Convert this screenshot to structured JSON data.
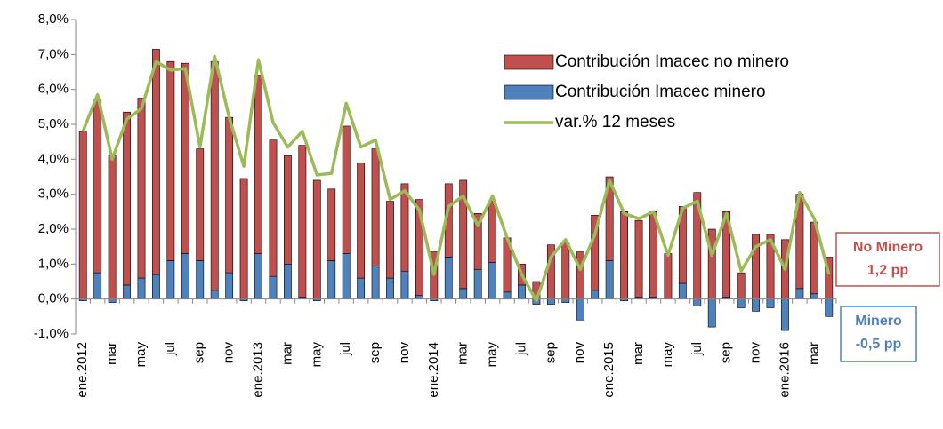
{
  "chart_data": {
    "type": "bar",
    "categories": [
      "ene.2012",
      null,
      "mar",
      null,
      "may",
      null,
      "jul",
      null,
      "sep",
      null,
      "nov",
      null,
      "ene.2013",
      null,
      "mar",
      null,
      "may",
      null,
      "jul",
      null,
      "sep",
      null,
      "nov",
      null,
      "ene.2014",
      null,
      "mar",
      null,
      "may",
      null,
      "jul",
      null,
      "sep",
      null,
      "nov",
      null,
      "ene.2015",
      null,
      "mar",
      null,
      "may",
      null,
      "jul",
      null,
      "sep",
      null,
      "nov",
      null,
      "ene.2016",
      null,
      "mar",
      null
    ],
    "series": [
      {
        "name": "Contribución Imacec no minero",
        "type": "bar",
        "color": "#c0504d",
        "values": [
          4.8,
          4.95,
          4.1,
          4.95,
          5.15,
          6.45,
          5.7,
          5.45,
          3.2,
          6.55,
          4.45,
          3.45,
          5.1,
          3.9,
          3.1,
          4.35,
          3.4,
          2.05,
          3.65,
          3.3,
          3.35,
          2.2,
          2.5,
          2.75,
          1.35,
          2.1,
          3.1,
          1.6,
          1.75,
          1.55,
          0.6,
          0.5,
          1.55,
          1.6,
          1.35,
          2.15,
          2.4,
          2.5,
          2.2,
          2.45,
          1.3,
          2.2,
          3.05,
          2.0,
          2.45,
          0.75,
          1.85,
          1.85,
          1.7,
          2.7,
          2.05,
          1.2
        ]
      },
      {
        "name": "Contribución Imacec minero",
        "type": "bar",
        "color": "#4f81bd",
        "values": [
          -0.05,
          0.75,
          -0.1,
          0.4,
          0.6,
          0.7,
          1.1,
          1.3,
          1.1,
          0.25,
          0.75,
          -0.05,
          1.3,
          0.65,
          1.0,
          0.05,
          -0.05,
          1.1,
          1.3,
          0.6,
          0.95,
          0.6,
          0.8,
          0.1,
          -0.05,
          1.2,
          0.3,
          0.85,
          1.05,
          0.2,
          0.4,
          -0.15,
          -0.15,
          -0.1,
          -0.6,
          0.25,
          1.1,
          -0.05,
          0.05,
          0.05,
          0.0,
          0.45,
          -0.2,
          -0.8,
          0.05,
          -0.25,
          -0.35,
          -0.25,
          -0.9,
          0.3,
          0.15,
          -0.5
        ]
      },
      {
        "name": "var.% 12 meses",
        "type": "line",
        "color": "#9bbb59",
        "values": [
          4.8,
          5.85,
          4.0,
          5.15,
          5.45,
          6.8,
          6.55,
          6.6,
          4.35,
          6.95,
          5.2,
          3.8,
          6.85,
          5.05,
          4.35,
          4.8,
          3.55,
          3.6,
          5.6,
          4.35,
          4.55,
          2.85,
          3.1,
          2.55,
          0.7,
          2.65,
          2.95,
          2.1,
          2.95,
          1.75,
          0.7,
          -0.05,
          1.2,
          1.7,
          0.85,
          1.85,
          3.4,
          2.45,
          2.3,
          2.5,
          1.25,
          2.6,
          2.8,
          1.25,
          2.45,
          0.8,
          1.5,
          1.7,
          0.85,
          3.05,
          2.3,
          0.7
        ]
      }
    ],
    "ylim": [
      -1,
      8
    ],
    "yticks": [
      {
        "value": -1,
        "label": "-1,0%"
      },
      {
        "value": 0,
        "label": "0,0%"
      },
      {
        "value": 1,
        "label": "1,0%"
      },
      {
        "value": 2,
        "label": "2,0%"
      },
      {
        "value": 3,
        "label": "3,0%"
      },
      {
        "value": 4,
        "label": "4,0%"
      },
      {
        "value": 5,
        "label": "5,0%"
      },
      {
        "value": 6,
        "label": "6,0%"
      },
      {
        "value": 7,
        "label": "7,0%"
      },
      {
        "value": 8,
        "label": "8,0%"
      }
    ],
    "legend": "upper right",
    "annotations": [
      {
        "lines": [
          "No Minero",
          "1,2 pp"
        ],
        "color": "#c0504d"
      },
      {
        "lines": [
          "Minero",
          "-0,5 pp"
        ],
        "color": "#4f81bd"
      }
    ]
  }
}
